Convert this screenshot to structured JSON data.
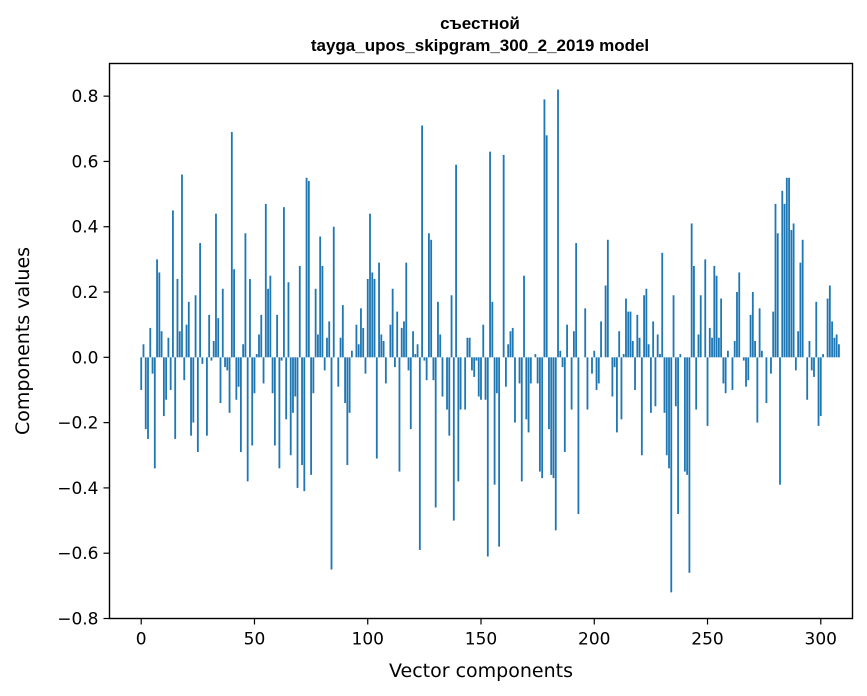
{
  "chart_data": {
    "type": "bar",
    "title_lines": [
      "съестной",
      "tayga_upos_skipgram_300_2_2019 model"
    ],
    "xlabel": "Vector components",
    "ylabel": "Components values",
    "xlim": [
      -14,
      314
    ],
    "ylim": [
      -0.8,
      0.9
    ],
    "xticks": [
      0,
      50,
      100,
      150,
      200,
      250,
      300
    ],
    "yticks": [
      -0.8,
      -0.6,
      -0.4,
      -0.2,
      0.0,
      0.2,
      0.4,
      0.6,
      0.8
    ],
    "ytick_labels": [
      "−0.8",
      "−0.6",
      "−0.4",
      "−0.2",
      "0.0",
      "0.2",
      "0.4",
      "0.6",
      "0.8"
    ],
    "grid": false,
    "bar_color": "#1f77b4",
    "values": [
      -0.1,
      0.04,
      -0.22,
      -0.25,
      0.09,
      -0.05,
      -0.34,
      0.3,
      0.26,
      0.08,
      -0.18,
      -0.13,
      0.06,
      -0.1,
      0.45,
      -0.25,
      0.24,
      0.08,
      0.56,
      -0.07,
      0.1,
      0.17,
      -0.24,
      -0.2,
      0.19,
      -0.29,
      0.35,
      -0.02,
      0.0,
      -0.24,
      0.13,
      -0.01,
      0.05,
      0.44,
      0.12,
      -0.14,
      0.21,
      -0.03,
      -0.04,
      -0.17,
      0.69,
      0.27,
      -0.13,
      -0.09,
      -0.29,
      0.04,
      0.38,
      -0.38,
      0.24,
      -0.27,
      -0.11,
      0.01,
      0.07,
      0.13,
      -0.08,
      0.47,
      0.21,
      0.25,
      -0.11,
      -0.27,
      0.13,
      -0.34,
      -0.01,
      0.46,
      -0.19,
      0.23,
      -0.3,
      -0.17,
      -0.12,
      -0.4,
      0.28,
      -0.33,
      -0.41,
      0.55,
      0.54,
      -0.36,
      -0.11,
      0.21,
      0.07,
      0.37,
      0.28,
      -0.04,
      0.06,
      0.11,
      -0.65,
      0.4,
      0.0,
      -0.09,
      0.06,
      0.16,
      -0.14,
      -0.33,
      -0.17,
      0.02,
      0.0,
      0.1,
      0.04,
      0.15,
      0.09,
      -0.05,
      0.24,
      0.44,
      0.26,
      0.24,
      -0.31,
      0.29,
      0.07,
      0.05,
      -0.08,
      0.0,
      0.1,
      0.21,
      -0.03,
      0.14,
      -0.35,
      0.09,
      0.11,
      0.29,
      -0.04,
      -0.22,
      0.08,
      0.01,
      0.04,
      -0.59,
      0.71,
      -0.01,
      -0.07,
      0.38,
      0.36,
      -0.07,
      -0.46,
      0.17,
      0.07,
      -0.12,
      0.0,
      -0.16,
      -0.24,
      0.19,
      -0.5,
      0.59,
      -0.38,
      -0.16,
      0.0,
      -0.16,
      0.06,
      0.06,
      -0.04,
      -0.06,
      -0.01,
      -0.12,
      -0.13,
      0.1,
      -0.13,
      -0.61,
      0.63,
      0.17,
      -0.39,
      -0.11,
      -0.58,
      0.0,
      0.62,
      -0.09,
      0.04,
      0.08,
      0.09,
      -0.2,
      0.0,
      -0.08,
      -0.38,
      0.25,
      -0.19,
      -0.23,
      -0.08,
      0.0,
      0.01,
      -0.08,
      -0.35,
      -0.37,
      0.79,
      0.68,
      -0.22,
      -0.36,
      -0.37,
      -0.53,
      0.82,
      0.02,
      -0.03,
      -0.29,
      0.1,
      0.0,
      -0.16,
      0.08,
      0.35,
      -0.48,
      0.0,
      0.0,
      0.15,
      -0.16,
      0.0,
      -0.05,
      0.02,
      -0.1,
      -0.08,
      0.11,
      0.0,
      0.22,
      0.36,
      0.0,
      -0.12,
      -0.03,
      -0.23,
      0.08,
      -0.19,
      0.01,
      0.18,
      0.14,
      0.14,
      0.05,
      -0.1,
      0.13,
      0.06,
      -0.3,
      0.19,
      0.21,
      0.04,
      -0.17,
      0.11,
      -0.15,
      0.07,
      0.01,
      0.32,
      -0.17,
      -0.3,
      -0.34,
      -0.72,
      0.19,
      -0.15,
      -0.48,
      0.01,
      0.0,
      -0.35,
      -0.36,
      -0.66,
      0.41,
      0.28,
      -0.16,
      0.07,
      0.19,
      0.0,
      0.3,
      -0.21,
      0.09,
      0.06,
      0.28,
      0.25,
      0.06,
      0.18,
      -0.08,
      -0.11,
      0.02,
      0.0,
      -0.1,
      0.05,
      0.2,
      0.26,
      0.0,
      -0.01,
      -0.09,
      -0.07,
      0.13,
      0.2,
      0.05,
      -0.2,
      0.15,
      0.02,
      0.0,
      -0.14,
      0.0,
      -0.05,
      0.14,
      0.47,
      0.38,
      -0.39,
      0.51,
      0.47,
      0.55,
      0.55,
      0.39,
      0.41,
      -0.04,
      0.08,
      0.29,
      0.36,
      0.0,
      -0.13,
      0.05,
      -0.04,
      -0.06,
      0.17,
      -0.21,
      -0.18,
      0.01,
      0.0,
      0.18,
      0.22,
      0.11,
      0.06,
      0.07,
      0.04,
      0.0
    ]
  }
}
